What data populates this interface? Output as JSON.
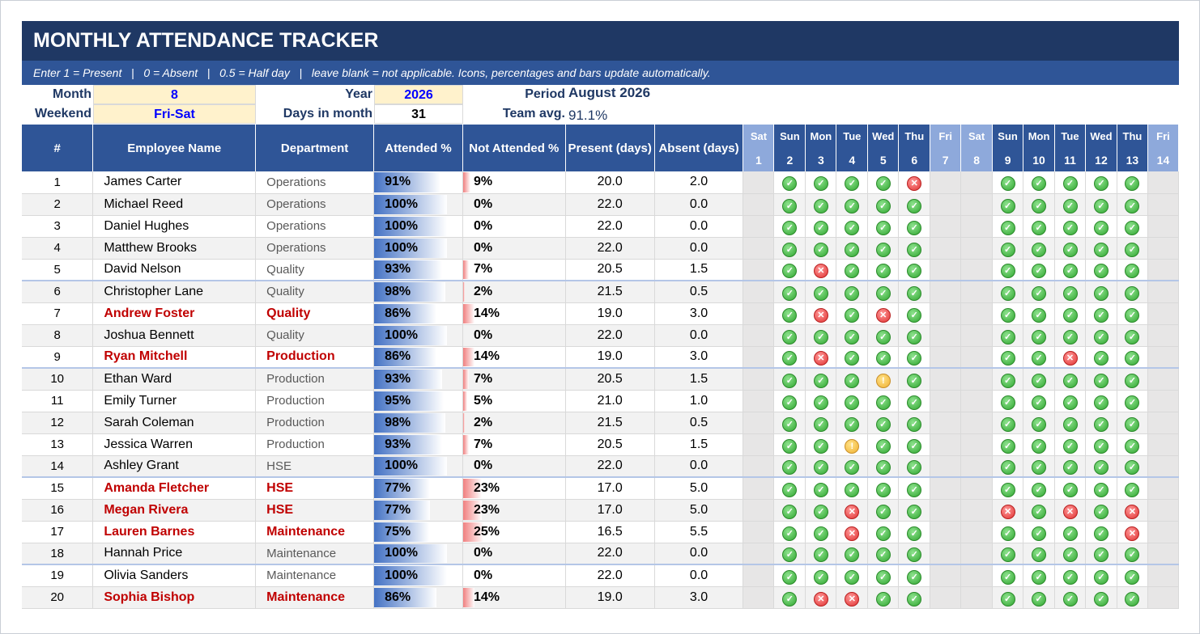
{
  "title": "MONTHLY ATTENDANCE TRACKER",
  "subtitle": "Enter 1 = Present   |   0 = Absent   |   0.5 = Half day   |   leave blank = not applicable. Icons, percentages and bars update automatically.",
  "info": {
    "month_label": "Month",
    "month_value": "8",
    "year_label": "Year",
    "year_value": "2026",
    "period_label": "Period",
    "period_value": "August 2026",
    "weekend_label": "Weekend",
    "weekend_value": "Fri-Sat",
    "days_label": "Days in month",
    "days_value": "31",
    "team_label": "Team avg.",
    "team_value": "91.1%"
  },
  "colors": {
    "title_bg": "#1f3864",
    "header_bg": "#2f5597",
    "weekend_header": "#8ea9db",
    "flag_text": "#c00000",
    "input_bg": "#fff2cc"
  },
  "headers": {
    "num": "#",
    "name": "Employee Name",
    "dept": "Department",
    "att": "Attended %",
    "natt": "Not Attended %",
    "present": "Present (days)",
    "absent": "Absent (days)"
  },
  "days": [
    {
      "dow": "Sat",
      "d": "1",
      "wk": true
    },
    {
      "dow": "Sun",
      "d": "2",
      "wk": false
    },
    {
      "dow": "Mon",
      "d": "3",
      "wk": false
    },
    {
      "dow": "Tue",
      "d": "4",
      "wk": false
    },
    {
      "dow": "Wed",
      "d": "5",
      "wk": false
    },
    {
      "dow": "Thu",
      "d": "6",
      "wk": false
    },
    {
      "dow": "Fri",
      "d": "7",
      "wk": true
    },
    {
      "dow": "Sat",
      "d": "8",
      "wk": true
    },
    {
      "dow": "Sun",
      "d": "9",
      "wk": false
    },
    {
      "dow": "Mon",
      "d": "10",
      "wk": false
    },
    {
      "dow": "Tue",
      "d": "11",
      "wk": false
    },
    {
      "dow": "Wed",
      "d": "12",
      "wk": false
    },
    {
      "dow": "Thu",
      "d": "13",
      "wk": false
    },
    {
      "dow": "Fri",
      "d": "14",
      "wk": true
    }
  ],
  "icon_names": {
    "present": "check-circle-icon",
    "absent": "x-circle-icon",
    "half": "exclamation-circle-icon"
  },
  "employees": [
    {
      "num": "1",
      "name": "James Carter",
      "dept": "Operations",
      "att": "91%",
      "natt": "9%",
      "att_frac": 0.91,
      "present": "20.0",
      "absent": "2.0",
      "flag": false,
      "marks": "PPPPX PPPPP"
    },
    {
      "num": "2",
      "name": "Michael Reed",
      "dept": "Operations",
      "att": "100%",
      "natt": "0%",
      "att_frac": 1.0,
      "present": "22.0",
      "absent": "0.0",
      "flag": false,
      "marks": "PPPPP PPPPP"
    },
    {
      "num": "3",
      "name": "Daniel Hughes",
      "dept": "Operations",
      "att": "100%",
      "natt": "0%",
      "att_frac": 1.0,
      "present": "22.0",
      "absent": "0.0",
      "flag": false,
      "marks": "PPPPP PPPPP"
    },
    {
      "num": "4",
      "name": "Matthew Brooks",
      "dept": "Operations",
      "att": "100%",
      "natt": "0%",
      "att_frac": 1.0,
      "present": "22.0",
      "absent": "0.0",
      "flag": false,
      "marks": "PPPPP PPPPP"
    },
    {
      "num": "5",
      "name": "David Nelson",
      "dept": "Quality",
      "att": "93%",
      "natt": "7%",
      "att_frac": 0.93,
      "present": "20.5",
      "absent": "1.5",
      "flag": false,
      "marks": "PXPPP PPPPP"
    },
    {
      "num": "6",
      "name": "Christopher Lane",
      "dept": "Quality",
      "att": "98%",
      "natt": "2%",
      "att_frac": 0.98,
      "present": "21.5",
      "absent": "0.5",
      "flag": false,
      "marks": "PPPPP PPPPP"
    },
    {
      "num": "7",
      "name": "Andrew Foster",
      "dept": "Quality",
      "att": "86%",
      "natt": "14%",
      "att_frac": 0.86,
      "present": "19.0",
      "absent": "3.0",
      "flag": true,
      "marks": "PXPXP PPPPP"
    },
    {
      "num": "8",
      "name": "Joshua Bennett",
      "dept": "Quality",
      "att": "100%",
      "natt": "0%",
      "att_frac": 1.0,
      "present": "22.0",
      "absent": "0.0",
      "flag": false,
      "marks": "PPPPP PPPPP"
    },
    {
      "num": "9",
      "name": "Ryan Mitchell",
      "dept": "Production",
      "att": "86%",
      "natt": "14%",
      "att_frac": 0.86,
      "present": "19.0",
      "absent": "3.0",
      "flag": true,
      "marks": "PXPPP PPXPP"
    },
    {
      "num": "10",
      "name": "Ethan Ward",
      "dept": "Production",
      "att": "93%",
      "natt": "7%",
      "att_frac": 0.93,
      "present": "20.5",
      "absent": "1.5",
      "flag": false,
      "marks": "PPPHP PPPPP"
    },
    {
      "num": "11",
      "name": "Emily Turner",
      "dept": "Production",
      "att": "95%",
      "natt": "5%",
      "att_frac": 0.95,
      "present": "21.0",
      "absent": "1.0",
      "flag": false,
      "marks": "PPPPP PPPPP"
    },
    {
      "num": "12",
      "name": "Sarah Coleman",
      "dept": "Production",
      "att": "98%",
      "natt": "2%",
      "att_frac": 0.98,
      "present": "21.5",
      "absent": "0.5",
      "flag": false,
      "marks": "PPPPP PPPPP"
    },
    {
      "num": "13",
      "name": "Jessica Warren",
      "dept": "Production",
      "att": "93%",
      "natt": "7%",
      "att_frac": 0.93,
      "present": "20.5",
      "absent": "1.5",
      "flag": false,
      "marks": "PPHPP PPPPP"
    },
    {
      "num": "14",
      "name": "Ashley Grant",
      "dept": "HSE",
      "att": "100%",
      "natt": "0%",
      "att_frac": 1.0,
      "present": "22.0",
      "absent": "0.0",
      "flag": false,
      "marks": "PPPPP PPPPP"
    },
    {
      "num": "15",
      "name": "Amanda Fletcher",
      "dept": "HSE",
      "att": "77%",
      "natt": "23%",
      "att_frac": 0.77,
      "present": "17.0",
      "absent": "5.0",
      "flag": true,
      "marks": "PPPPP PPPPP"
    },
    {
      "num": "16",
      "name": "Megan Rivera",
      "dept": "HSE",
      "att": "77%",
      "natt": "23%",
      "att_frac": 0.77,
      "present": "17.0",
      "absent": "5.0",
      "flag": true,
      "marks": "PPXPP XPXPX"
    },
    {
      "num": "17",
      "name": "Lauren Barnes",
      "dept": "Maintenance",
      "att": "75%",
      "natt": "25%",
      "att_frac": 0.75,
      "present": "16.5",
      "absent": "5.5",
      "flag": true,
      "marks": "PPXPP PPPPX"
    },
    {
      "num": "18",
      "name": "Hannah Price",
      "dept": "Maintenance",
      "att": "100%",
      "natt": "0%",
      "att_frac": 1.0,
      "present": "22.0",
      "absent": "0.0",
      "flag": false,
      "marks": "PPPPP PPPPP"
    },
    {
      "num": "19",
      "name": "Olivia Sanders",
      "dept": "Maintenance",
      "att": "100%",
      "natt": "0%",
      "att_frac": 1.0,
      "present": "22.0",
      "absent": "0.0",
      "flag": false,
      "marks": "PPPPP PPPPP"
    },
    {
      "num": "20",
      "name": "Sophia Bishop",
      "dept": "Maintenance",
      "att": "86%",
      "natt": "14%",
      "att_frac": 0.86,
      "present": "19.0",
      "absent": "3.0",
      "flag": true,
      "marks": "PXXPP PPPPP"
    }
  ]
}
